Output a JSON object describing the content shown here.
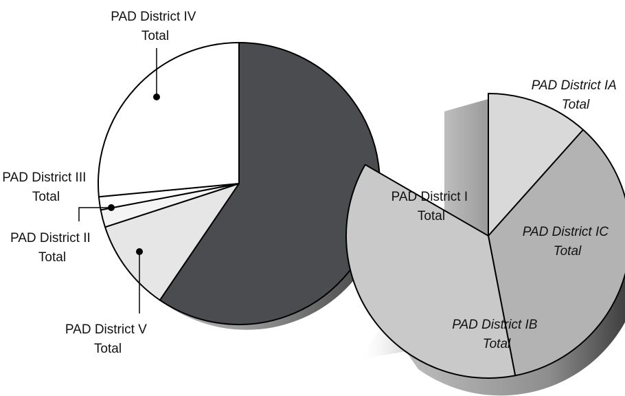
{
  "chart_data": [
    {
      "type": "pie",
      "style": "3d",
      "slices": [
        {
          "label": "PAD District I Total",
          "value": 59.5,
          "color": "#4b4c4f",
          "label_text": [
            "PAD District I",
            "Total"
          ]
        },
        {
          "label": "PAD District V Total",
          "value": 10.5,
          "color": "#e6e6e6",
          "label_text": [
            "PAD District V",
            "Total"
          ]
        },
        {
          "label": "PAD District II Total",
          "value": 2.0,
          "color": "#f4f4f4",
          "label_text": [
            "PAD District II",
            "Total"
          ]
        },
        {
          "label": "PAD District III Total",
          "value": 1.5,
          "color": "#ffffff",
          "label_text": [
            "PAD District III",
            "Total"
          ]
        },
        {
          "label": "PAD District IV Total",
          "value": 26.5,
          "color": "#ffffff",
          "label_text": [
            "PAD District IV",
            "Total"
          ]
        }
      ]
    },
    {
      "type": "pie",
      "style": "3d-exploded-detail",
      "parent_slice": "PAD District I Total",
      "slices": [
        {
          "label": "PAD District IA Total",
          "value": 11.5,
          "color": "#d9d9d9",
          "label_text": [
            "PAD District IA",
            "Total"
          ]
        },
        {
          "label": "PAD District IC Total",
          "value": 35.0,
          "color": "#b3b3b3",
          "label_text": [
            "PAD District IC",
            "Total"
          ]
        },
        {
          "label": "PAD District IB Total",
          "value": 36.0,
          "color": "#c9c9c9",
          "label_text": [
            "PAD District IB",
            "Total"
          ]
        }
      ]
    }
  ]
}
